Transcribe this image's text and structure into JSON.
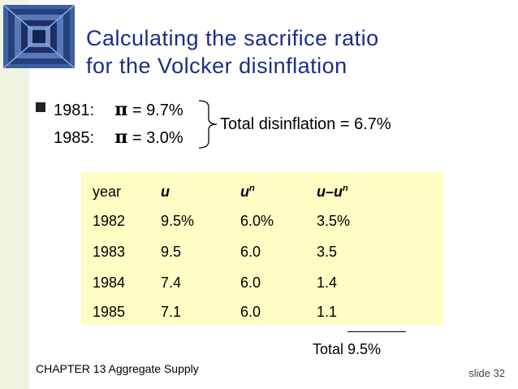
{
  "title_line1": "Calculating the sacrifice ratio",
  "title_line2": "for the Volcker disinflation",
  "bullet": {
    "row1": {
      "year": "1981:",
      "symbol": "π",
      "value": "= 9.7%"
    },
    "row2": {
      "year": "1985:",
      "symbol": "π",
      "value": "= 3.0%"
    },
    "total": "Total disinflation = 6.7%"
  },
  "table": {
    "headers": {
      "year": "year",
      "u": "u",
      "un_base": "u",
      "un_sup": "n",
      "diff_base": "u–u",
      "diff_sup": "n"
    },
    "rows": [
      {
        "year": "1982",
        "u": "9.5%",
        "un": "6.0%",
        "diff": "3.5%"
      },
      {
        "year": "1983",
        "u": "9.5",
        "un": "6.0",
        "diff": "3.5"
      },
      {
        "year": "1984",
        "u": "7.4",
        "un": "6.0",
        "diff": "1.4"
      },
      {
        "year": "1985",
        "u": "7.1",
        "un": "6.0",
        "diff": "1.1"
      }
    ],
    "total": "Total  9.5%"
  },
  "footer": {
    "chapter": "CHAPTER 13   Aggregate Supply",
    "slide": "slide 32"
  },
  "colors": {
    "title": "#1a2e8a",
    "table_bg": "#fffdc4",
    "sidebar": "#f0f5e2"
  },
  "icons": {
    "logo": "blue-square-tunnel-logo"
  }
}
